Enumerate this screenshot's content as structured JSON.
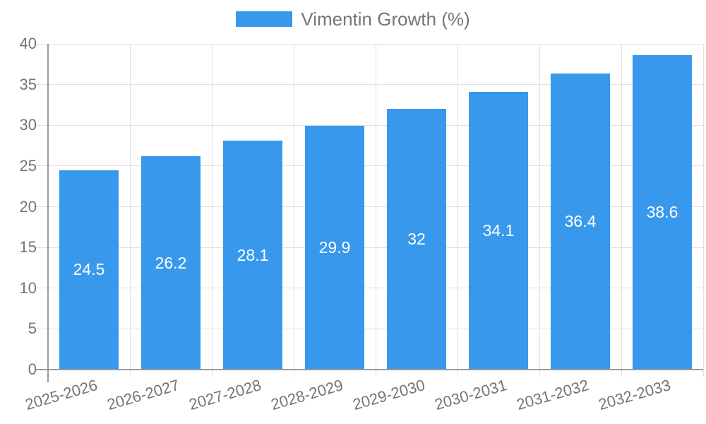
{
  "page": {
    "background": "#ffffff"
  },
  "chart_data": {
    "type": "bar",
    "title": "",
    "xlabel": "",
    "ylabel": "",
    "categories": [
      "2025-2026",
      "2026-2027",
      "2027-2028",
      "2028-2029",
      "2029-2030",
      "2030-2031",
      "2031-2032",
      "2032-2033"
    ],
    "series": [
      {
        "name": "Vimentin Growth (%)",
        "values": [
          24.5,
          26.2,
          28.1,
          29.9,
          32,
          34.1,
          36.4,
          38.6
        ]
      }
    ],
    "bar_value_labels": [
      "24.5",
      "26.2",
      "28.1",
      "29.9",
      "32",
      "34.1",
      "36.4",
      "38.6"
    ],
    "ylim": [
      0,
      40
    ],
    "yticks": [
      0,
      5,
      10,
      15,
      20,
      25,
      30,
      35,
      40
    ],
    "grid": true,
    "legend_position": "top-center",
    "x_tick_rotation": -16,
    "colors": {
      "bar": "#3899ec",
      "bar_label": "#ffffff",
      "grid": "#e0e0e0",
      "axis": "#999999",
      "tick_text": "#757575"
    }
  }
}
